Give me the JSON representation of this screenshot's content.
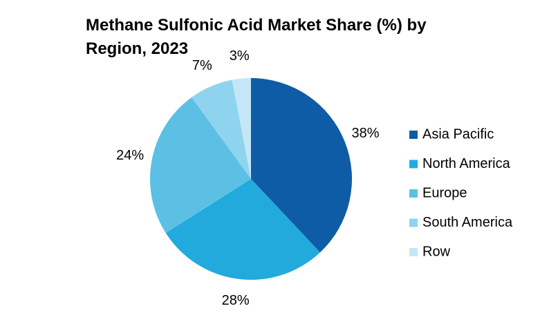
{
  "chart_data": {
    "type": "pie",
    "title": "Methane Sulfonic Acid Market Share (%) by Region, 2023",
    "categories": [
      "Asia Pacific",
      "North America",
      "Europe",
      "South America",
      "Row"
    ],
    "values": [
      38,
      28,
      24,
      7,
      3
    ],
    "value_labels": [
      "38%",
      "28%",
      "24%",
      "7%",
      "3%"
    ],
    "colors": [
      "#0f5ca6",
      "#22aadd",
      "#5cc0e4",
      "#8fd4ee",
      "#c3e7f6"
    ],
    "legend": "right"
  }
}
